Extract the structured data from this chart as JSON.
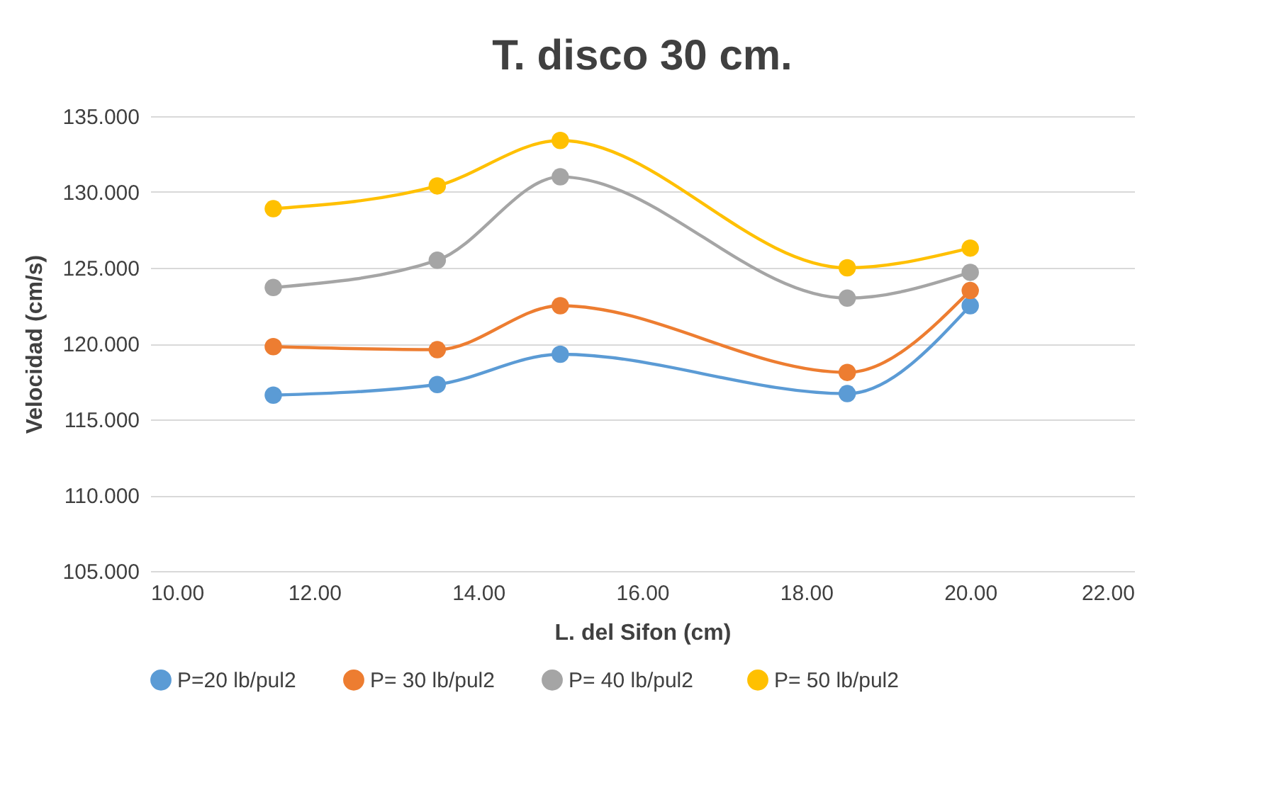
{
  "chart_data": {
    "type": "line",
    "title": "T. disco 30 cm.",
    "xlabel": "L. del Sifon (cm)",
    "ylabel": "Velocidad (cm/s)",
    "x": [
      11.5,
      13.5,
      15,
      18.5,
      20
    ],
    "series": [
      {
        "name": "P=20 lb/pul2",
        "color": "#5b9bd5",
        "values": [
          116.6,
          117.3,
          119.3,
          116.7,
          122.5
        ]
      },
      {
        "name": "P= 30 lb/pul2",
        "color": "#ed7d31",
        "values": [
          119.8,
          119.6,
          122.5,
          118.1,
          123.5
        ]
      },
      {
        "name": "P= 40  lb/pul2",
        "color": "#a5a5a5",
        "values": [
          123.7,
          125.5,
          131.0,
          123.0,
          124.7
        ]
      },
      {
        "name": "P= 50 lb/pul2",
        "color": "#ffc000",
        "values": [
          128.9,
          130.4,
          133.4,
          125.0,
          126.3
        ]
      }
    ],
    "xlim": [
      10,
      22
    ],
    "ylim": [
      105,
      135
    ],
    "xticks": [
      {
        "value": 10,
        "label": "10.00"
      },
      {
        "value": 12,
        "label": "12.00"
      },
      {
        "value": 14,
        "label": "14.00"
      },
      {
        "value": 16,
        "label": "16.00"
      },
      {
        "value": 18,
        "label": "18.00"
      },
      {
        "value": 20,
        "label": "20.00"
      },
      {
        "value": 22,
        "label": "22.00"
      }
    ],
    "yticks": [
      {
        "value": 105,
        "label": "105.000"
      },
      {
        "value": 110,
        "label": "110.000"
      },
      {
        "value": 115,
        "label": "115.000"
      },
      {
        "value": 120,
        "label": "120.000"
      },
      {
        "value": 125,
        "label": "125.000"
      },
      {
        "value": 130,
        "label": "130.000"
      },
      {
        "value": 135,
        "label": "135.000"
      }
    ],
    "grid": "y",
    "legend": "bottom",
    "marker": "circle",
    "line_style": "solid"
  }
}
